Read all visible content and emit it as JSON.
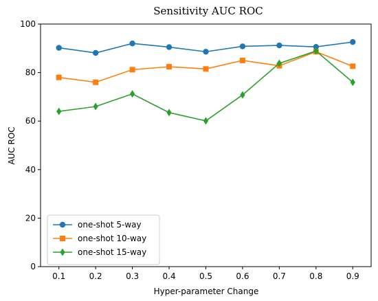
{
  "chart_data": {
    "type": "line",
    "title": "Sensitivity AUC ROC",
    "xlabel": "Hyper-parameter Change",
    "ylabel": "AUC ROC",
    "x": [
      0.1,
      0.2,
      0.3,
      0.4,
      0.5,
      0.6,
      0.7,
      0.8,
      0.9
    ],
    "x_tick_labels": [
      "0.1",
      "0.2",
      "0.3",
      "0.4",
      "0.5",
      "0.6",
      "0.7",
      "0.8",
      "0.9"
    ],
    "y_ticks": [
      0,
      20,
      40,
      60,
      80,
      100
    ],
    "y_tick_labels": [
      "0",
      "20",
      "40",
      "60",
      "80",
      "100"
    ],
    "xlim": [
      0.05,
      0.95
    ],
    "ylim": [
      0,
      100
    ],
    "grid": false,
    "legend_position": "lower-left",
    "series": [
      {
        "name": "one-shot 5-way",
        "color": "#1f77b4",
        "marker": "circle",
        "values": [
          90.2,
          88.1,
          92.0,
          90.5,
          88.6,
          90.8,
          91.2,
          90.6,
          92.6
        ]
      },
      {
        "name": "one-shot 10-way",
        "color": "#ff7f0e",
        "marker": "square",
        "values": [
          78.0,
          76.0,
          81.2,
          82.4,
          81.5,
          85.0,
          82.8,
          88.6,
          82.6
        ]
      },
      {
        "name": "one-shot 15-way",
        "color": "#2ca02c",
        "marker": "diamond",
        "values": [
          64.0,
          66.0,
          71.2,
          63.5,
          60.1,
          70.8,
          83.8,
          88.9,
          76.0
        ]
      }
    ]
  }
}
